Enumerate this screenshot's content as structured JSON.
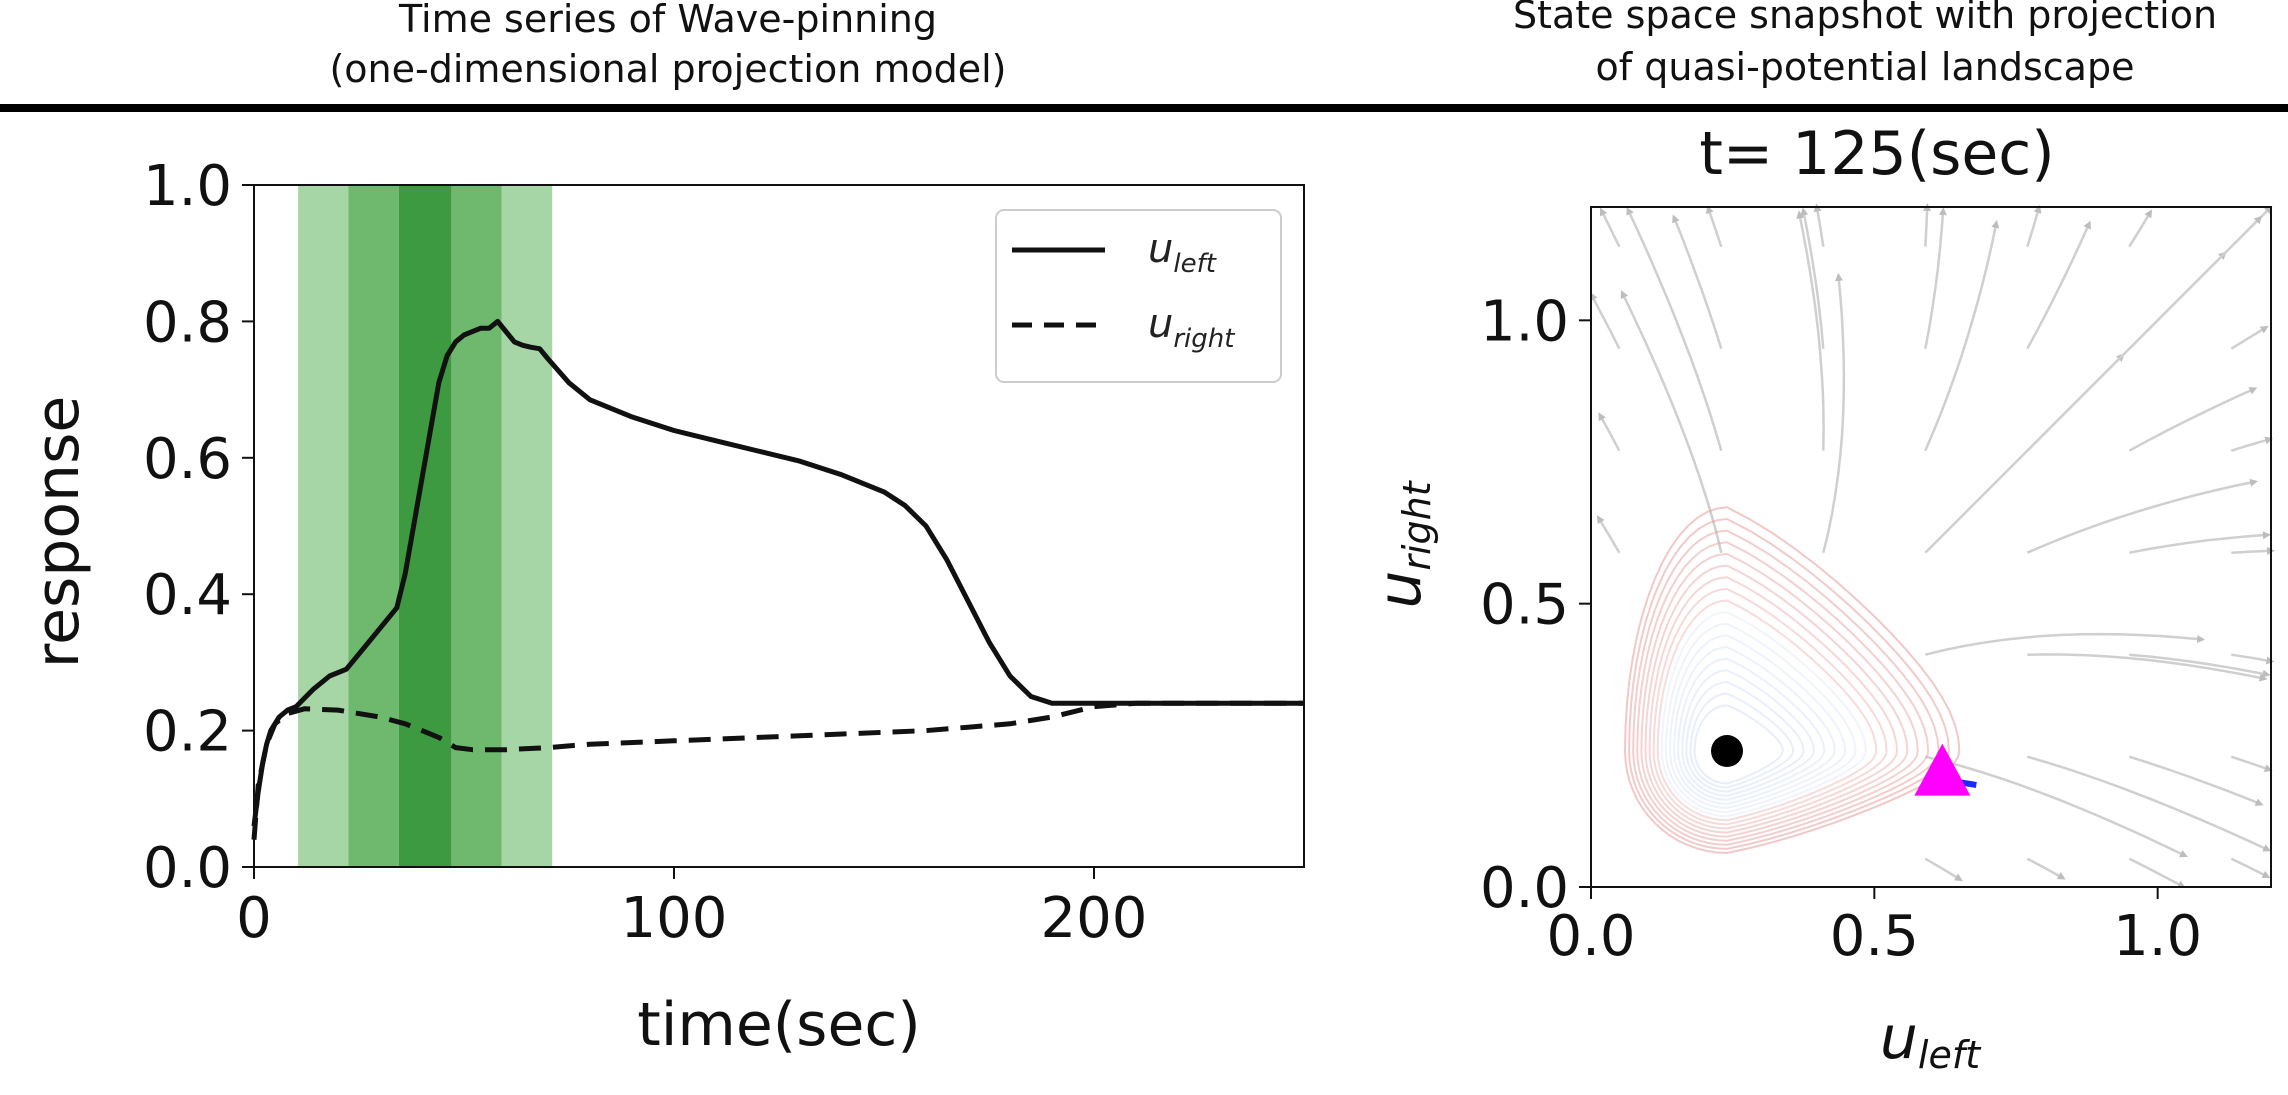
{
  "headers": {
    "left": [
      "Time series of Wave-pinning",
      "(one-dimensional projection model)"
    ],
    "right": [
      "State space snapshot with projection",
      "of quasi-potential landscape"
    ]
  },
  "chart_data": [
    {
      "type": "line",
      "xlabel": "time(sec)",
      "ylabel": "response",
      "xlim": [
        0,
        250
      ],
      "ylim": [
        0,
        1.0
      ],
      "xticks": [
        "0",
        "100",
        "200"
      ],
      "xtick_values": [
        0,
        100,
        200
      ],
      "yticks": [
        "0.0",
        "0.2",
        "0.4",
        "0.6",
        "0.8",
        "1.0"
      ],
      "ytick_values": [
        0,
        0.2,
        0.4,
        0.6,
        0.8,
        1.0
      ],
      "legend_position": "top-right",
      "legend": [
        {
          "main": "u",
          "sub": "left",
          "style": "solid"
        },
        {
          "main": "u",
          "sub": "right",
          "style": "dashed"
        }
      ],
      "stimulus_bands": [
        {
          "x0": 10.5,
          "x1": 22.5,
          "level": 1
        },
        {
          "x0": 22.5,
          "x1": 34.5,
          "level": 2
        },
        {
          "x0": 34.5,
          "x1": 47,
          "level": 3
        },
        {
          "x0": 47,
          "x1": 59,
          "level": 2
        },
        {
          "x0": 59,
          "x1": 71,
          "level": 1
        }
      ],
      "band_colors": [
        "#a6d5a6",
        "#6fb96f",
        "#3d9a40"
      ],
      "series": [
        {
          "key": "u_left",
          "style": "solid",
          "color": "#111111",
          "x": [
            0,
            1,
            2,
            3,
            4,
            6,
            8,
            10,
            14,
            18,
            22,
            26,
            30,
            34,
            36,
            38,
            40,
            42,
            44,
            46,
            48,
            50,
            52,
            54,
            56,
            58,
            60,
            62,
            64,
            66,
            68,
            70,
            75,
            80,
            90,
            100,
            110,
            120,
            130,
            140,
            150,
            155,
            160,
            165,
            170,
            175,
            180,
            185,
            190,
            195,
            200,
            210,
            220,
            230,
            240,
            250
          ],
          "y": [
            0.06,
            0.11,
            0.15,
            0.18,
            0.2,
            0.22,
            0.23,
            0.235,
            0.26,
            0.28,
            0.29,
            0.32,
            0.35,
            0.38,
            0.43,
            0.5,
            0.57,
            0.64,
            0.71,
            0.75,
            0.77,
            0.78,
            0.785,
            0.79,
            0.79,
            0.8,
            0.785,
            0.77,
            0.765,
            0.762,
            0.76,
            0.745,
            0.71,
            0.685,
            0.66,
            0.64,
            0.625,
            0.61,
            0.595,
            0.575,
            0.55,
            0.53,
            0.5,
            0.45,
            0.39,
            0.33,
            0.28,
            0.25,
            0.24,
            0.24,
            0.24,
            0.24,
            0.24,
            0.24,
            0.24,
            0.24
          ]
        },
        {
          "key": "u_right",
          "style": "dashed",
          "color": "#111111",
          "x": [
            0,
            1,
            2,
            3,
            5,
            8,
            12,
            20,
            30,
            36,
            40,
            44,
            48,
            52,
            56,
            60,
            70,
            80,
            100,
            120,
            140,
            160,
            170,
            180,
            190,
            200,
            210,
            220,
            230,
            240,
            250
          ],
          "y": [
            0.04,
            0.12,
            0.15,
            0.18,
            0.21,
            0.225,
            0.232,
            0.23,
            0.22,
            0.21,
            0.2,
            0.19,
            0.175,
            0.172,
            0.172,
            0.172,
            0.175,
            0.18,
            0.185,
            0.19,
            0.195,
            0.2,
            0.205,
            0.21,
            0.22,
            0.235,
            0.24,
            0.24,
            0.24,
            0.24,
            0.24
          ]
        }
      ]
    },
    {
      "type": "scatter",
      "title": "t= 125(sec)",
      "xlabel": {
        "main": "u",
        "sub": "left"
      },
      "ylabel": {
        "main": "u",
        "sub": "right"
      },
      "xlim": [
        0,
        1.2
      ],
      "ylim": [
        0,
        1.2
      ],
      "xticks": [
        "0.0",
        "0.5",
        "1.0"
      ],
      "xtick_values": [
        0,
        0.5,
        1.0
      ],
      "yticks": [
        "0.0",
        "0.5",
        "1.0"
      ],
      "ytick_values": [
        0,
        0.5,
        1.0
      ],
      "stable_point": {
        "x": 0.24,
        "y": 0.24,
        "color": "#000000"
      },
      "current_state": {
        "x": 0.62,
        "y": 0.2,
        "color": "#ff00ff",
        "marker": "triangle"
      },
      "trajectory": {
        "x": [
          0.62,
          0.65,
          0.68
        ],
        "y": [
          0.19,
          0.185,
          0.18
        ],
        "color": "#1a2bff"
      },
      "basin": {
        "center": [
          0.24,
          0.24
        ],
        "outer_color": "#e8a3a3",
        "inner_color": "#d6dff8"
      }
    }
  ]
}
